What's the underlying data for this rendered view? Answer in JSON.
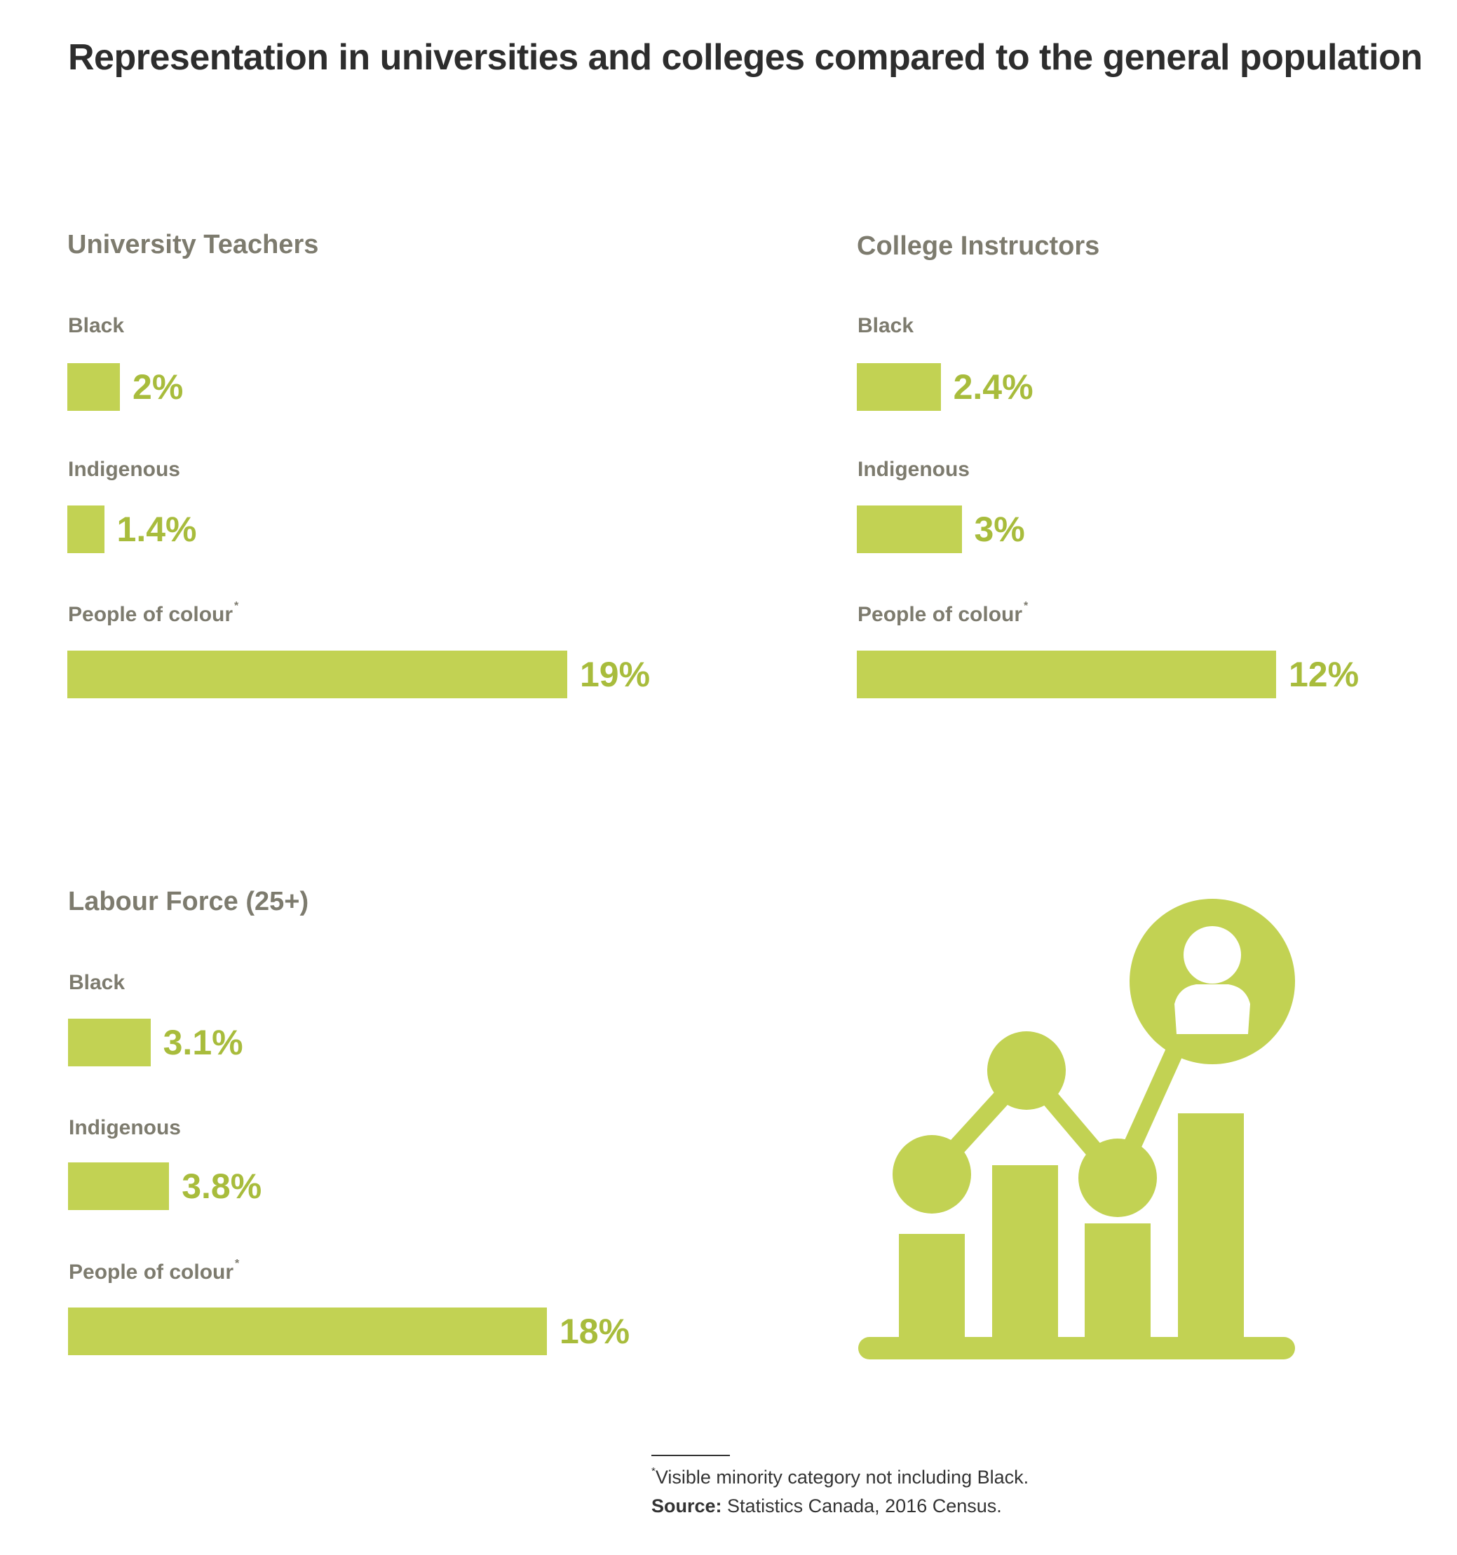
{
  "title": "Representation in universities and colleges compared to the general population",
  "colors": {
    "bar": "#c2d253",
    "value_text": "#a8bc3c",
    "label_text": "#7d7b6e",
    "title_text": "#2d2d2d"
  },
  "asterisk": "*",
  "chart_data": [
    {
      "type": "bar",
      "title": "University Teachers",
      "categories": [
        "Black",
        "Indigenous",
        "People of colour*"
      ],
      "values": [
        2,
        1.4,
        19
      ],
      "value_labels": [
        "2%",
        "1.4%",
        "19%"
      ],
      "unit": "%"
    },
    {
      "type": "bar",
      "title": "College Instructors",
      "categories": [
        "Black",
        "Indigenous",
        "People of colour*"
      ],
      "values": [
        2.4,
        3,
        12
      ],
      "value_labels": [
        "2.4%",
        "3%",
        "12%"
      ],
      "unit": "%"
    },
    {
      "type": "bar",
      "title": "Labour Force (25+)",
      "categories": [
        "Black",
        "Indigenous",
        "People of colour*"
      ],
      "values": [
        3.1,
        3.8,
        18
      ],
      "value_labels": [
        "3.1%",
        "3.8%",
        "18%"
      ],
      "unit": "%"
    }
  ],
  "illustration": {
    "icon": "chart-with-person-icon"
  },
  "footnote": {
    "marker": "*",
    "text": "Visible minority category not including Black."
  },
  "source": {
    "label": "Source:",
    "text": "Statistics Canada, 2016 Census."
  }
}
